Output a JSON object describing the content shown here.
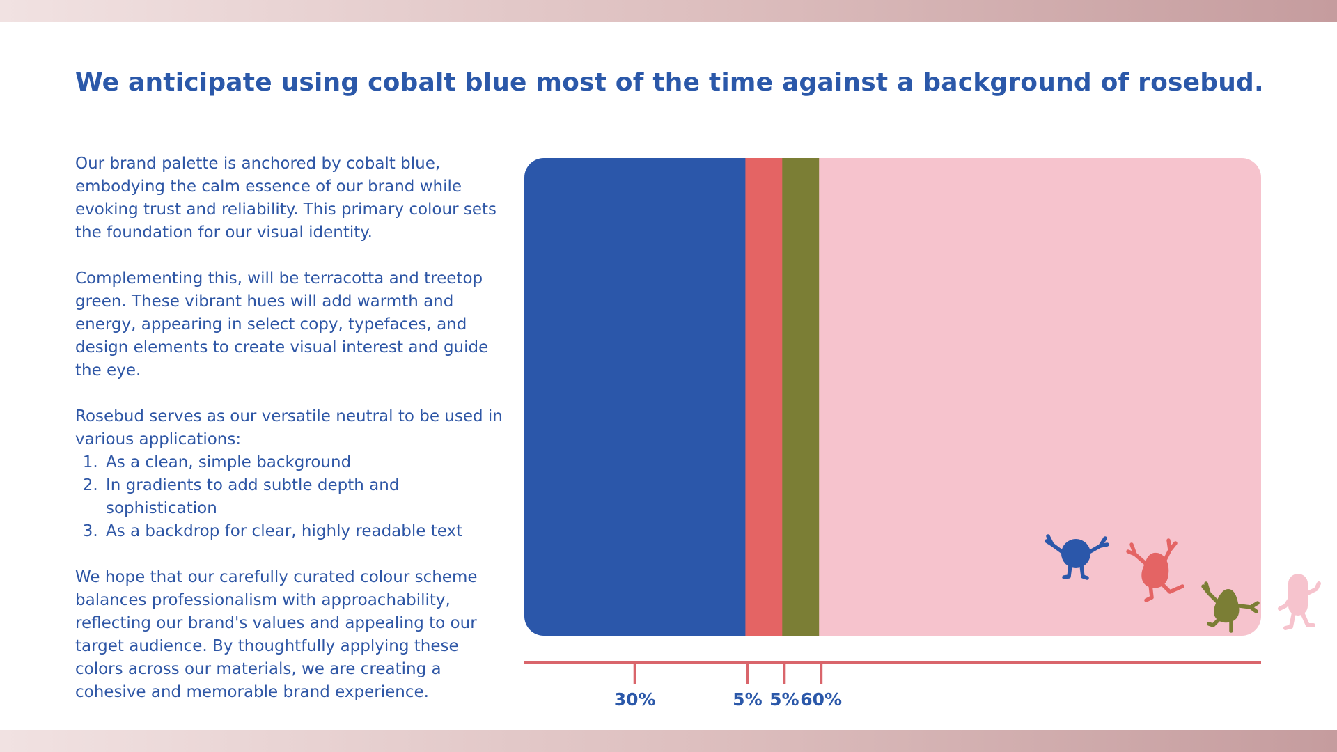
{
  "title": "We anticipate using cobalt blue most of the time against a background of rosebud.",
  "body": {
    "p1": "Our brand palette is anchored by cobalt blue, embodying the calm essence of our brand while evoking trust and reliability. This primary colour sets the foundation for our visual identity.",
    "p2": "Complementing this, will be terracotta and treetop green. These vibrant hues will add warmth and energy, appearing in select copy, typefaces, and design elements to create visual interest and guide the eye.",
    "p3": "Rosebud serves as our versatile neutral to be used in various applications:",
    "list": [
      "As a clean, simple background",
      "In gradients to add subtle depth and sophistication",
      "As a backdrop for clear, highly readable text"
    ],
    "p4": "We hope that our carefully curated colour scheme balances professionalism with approachability, reflecting our brand's values and appealing to our target audience. By thoughtfully applying these colors across our materials, we are creating a cohesive and memorable brand experience."
  },
  "colors": {
    "cobalt_blue": "#2b57aa",
    "terracotta": "#e46464",
    "treetop_green": "#7b7e35",
    "rosebud": "#f6c3cd",
    "heading_text": "#2b58a9",
    "axis_line": "#d9656b",
    "band_gradient": [
      "#f1e2e2",
      "#c59c9e"
    ]
  },
  "icons": [
    "blue-character-icon",
    "terracotta-character-icon",
    "green-character-icon",
    "rosebud-character-icon"
  ],
  "chart_data": {
    "type": "bar",
    "orientation": "horizontal-stacked",
    "categories": [
      "cobalt blue",
      "terracotta",
      "treetop green",
      "rosebud"
    ],
    "values": [
      30,
      5,
      5,
      60
    ],
    "labels": [
      "30%",
      "5%",
      "5%",
      "60%"
    ],
    "colors": [
      "#2b57aa",
      "#e46464",
      "#7b7e35",
      "#f6c3cd"
    ],
    "xlim": [
      0,
      100
    ],
    "title": "",
    "xlabel": "",
    "ylabel": "",
    "grid": false,
    "legend": "none"
  }
}
